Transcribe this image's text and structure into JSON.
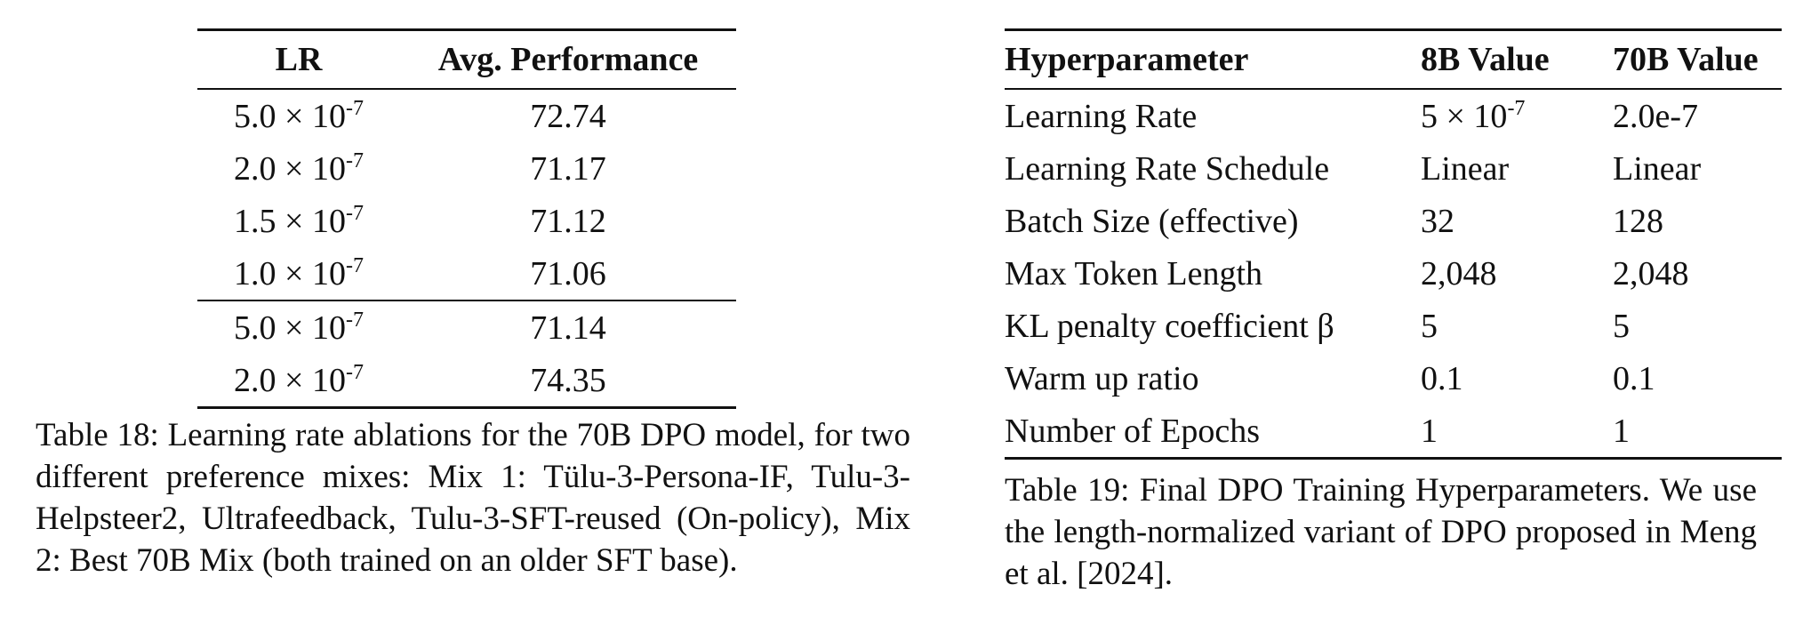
{
  "lr_table": {
    "headers": [
      "LR",
      "Avg. Performance"
    ],
    "rows": [
      {
        "lr_base": "5.0 × 10",
        "lr_exp": "-7",
        "performance": "72.74"
      },
      {
        "lr_base": "2.0 × 10",
        "lr_exp": "-7",
        "performance": "71.17"
      },
      {
        "lr_base": "1.5 × 10",
        "lr_exp": "-7",
        "performance": "71.12"
      },
      {
        "lr_base": "1.0 × 10",
        "lr_exp": "-7",
        "performance": "71.06"
      },
      {
        "lr_base": "5.0 × 10",
        "lr_exp": "-7",
        "performance": "71.14"
      },
      {
        "lr_base": "2.0 × 10",
        "lr_exp": "-7",
        "performance": "74.35"
      }
    ],
    "caption": "Table 18: Learning rate ablations for the 70B DPO model, for two different preference mixes: Mix 1: Tülu-3-Persona-IF, Tulu-3-Helpsteer2, Ultrafeedback, Tulu-3-SFT-reused (On-policy), Mix 2: Best 70B Mix (both trained on an older SFT base)."
  },
  "hp_table": {
    "headers": [
      "Hyperparameter",
      "8B Value",
      "70B Value"
    ],
    "rows": [
      {
        "name": "Learning Rate",
        "v8b": "5 × 10",
        "v8b_exp": "-7",
        "v70b": "2.0e-7"
      },
      {
        "name": "Learning Rate Schedule",
        "v8b": "Linear",
        "v8b_exp": "",
        "v70b": "Linear"
      },
      {
        "name": "Batch Size (effective)",
        "v8b": "32",
        "v8b_exp": "",
        "v70b": "128"
      },
      {
        "name": "Max Token Length",
        "v8b": "2,048",
        "v8b_exp": "",
        "v70b": "2,048"
      },
      {
        "name": "KL penalty coefficient β",
        "v8b": "5",
        "v8b_exp": "",
        "v70b": "5"
      },
      {
        "name": "Warm up ratio",
        "v8b": "0.1",
        "v8b_exp": "",
        "v70b": "0.1"
      },
      {
        "name": "Number of Epochs",
        "v8b": "1",
        "v8b_exp": "",
        "v70b": "1"
      }
    ],
    "caption": "Table 19: Final DPO Training Hyperparameters. We use the length-normalized variant of DPO proposed in Meng et al. [2024]."
  }
}
